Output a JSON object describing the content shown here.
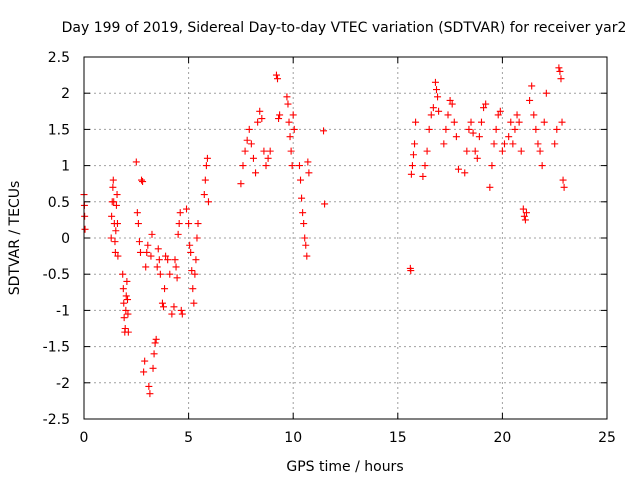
{
  "chart_data": {
    "type": "scatter",
    "title": "Day 199 of 2019, Sidereal Day-to-day VTEC variation (SDTVAR) for receiver yar2",
    "xlabel": "GPS time / hours",
    "ylabel": "SDTVAR / TECUs",
    "xlim": [
      0,
      25
    ],
    "ylim": [
      -2.5,
      2.5
    ],
    "xticks": [
      0,
      5,
      10,
      15,
      20,
      25
    ],
    "yticks": [
      -2.5,
      -2,
      -1.5,
      -1,
      -0.5,
      0,
      0.5,
      1,
      1.5,
      2,
      2.5
    ],
    "xtick_labels": [
      "0",
      "5",
      "10",
      "15",
      "20",
      "25"
    ],
    "ytick_labels": [
      "-2.5",
      "-2",
      "-1.5",
      "-1",
      "-0.5",
      "0",
      "0.5",
      "1",
      "1.5",
      "2",
      "2.5"
    ],
    "grid": true,
    "marker": "+",
    "marker_color": "#ff0000",
    "series": [
      {
        "name": "SDTVAR",
        "points": [
          [
            0.0,
            0.6
          ],
          [
            0.02,
            0.45
          ],
          [
            0.03,
            0.3
          ],
          [
            0.05,
            0.12
          ],
          [
            1.3,
            0.0
          ],
          [
            1.32,
            0.3
          ],
          [
            1.35,
            0.5
          ],
          [
            1.38,
            0.7
          ],
          [
            1.4,
            0.8
          ],
          [
            1.42,
            0.5
          ],
          [
            1.45,
            0.2
          ],
          [
            1.48,
            -0.05
          ],
          [
            1.5,
            -0.2
          ],
          [
            1.52,
            0.1
          ],
          [
            1.55,
            0.45
          ],
          [
            1.58,
            0.6
          ],
          [
            1.6,
            0.2
          ],
          [
            1.62,
            -0.25
          ],
          [
            1.85,
            -0.5
          ],
          [
            1.88,
            -0.7
          ],
          [
            1.9,
            -0.9
          ],
          [
            1.92,
            -1.1
          ],
          [
            1.95,
            -1.3
          ],
          [
            1.97,
            -1.25
          ],
          [
            2.0,
            -1.0
          ],
          [
            2.02,
            -0.8
          ],
          [
            2.05,
            -0.6
          ],
          [
            2.08,
            -0.85
          ],
          [
            2.1,
            -1.05
          ],
          [
            2.12,
            -1.3
          ],
          [
            2.5,
            1.05
          ],
          [
            2.55,
            0.35
          ],
          [
            2.6,
            0.2
          ],
          [
            2.65,
            -0.05
          ],
          [
            2.7,
            -0.2
          ],
          [
            2.75,
            0.8
          ],
          [
            2.8,
            0.78
          ],
          [
            2.85,
            -1.85
          ],
          [
            2.9,
            -1.7
          ],
          [
            2.95,
            -0.4
          ],
          [
            3.0,
            -0.2
          ],
          [
            3.05,
            -0.1
          ],
          [
            3.1,
            -2.05
          ],
          [
            3.15,
            -2.15
          ],
          [
            3.2,
            -0.25
          ],
          [
            3.25,
            0.05
          ],
          [
            3.3,
            -1.8
          ],
          [
            3.35,
            -1.6
          ],
          [
            3.4,
            -1.45
          ],
          [
            3.45,
            -1.4
          ],
          [
            3.5,
            -0.4
          ],
          [
            3.55,
            -0.15
          ],
          [
            3.6,
            -0.3
          ],
          [
            3.65,
            -0.5
          ],
          [
            3.75,
            -0.9
          ],
          [
            3.8,
            -0.95
          ],
          [
            3.85,
            -0.7
          ],
          [
            3.9,
            -0.25
          ],
          [
            4.0,
            -0.3
          ],
          [
            4.1,
            -0.5
          ],
          [
            4.2,
            -1.05
          ],
          [
            4.3,
            -0.95
          ],
          [
            4.35,
            -0.3
          ],
          [
            4.4,
            -0.4
          ],
          [
            4.45,
            -0.55
          ],
          [
            4.5,
            0.05
          ],
          [
            4.55,
            0.2
          ],
          [
            4.6,
            0.35
          ],
          [
            4.65,
            -1.0
          ],
          [
            4.7,
            -1.05
          ],
          [
            4.9,
            0.4
          ],
          [
            5.0,
            0.2
          ],
          [
            5.05,
            -0.1
          ],
          [
            5.1,
            -0.2
          ],
          [
            5.15,
            -0.45
          ],
          [
            5.2,
            -0.7
          ],
          [
            5.25,
            -0.9
          ],
          [
            5.3,
            -0.5
          ],
          [
            5.35,
            -0.3
          ],
          [
            5.4,
            0.0
          ],
          [
            5.45,
            0.2
          ],
          [
            5.75,
            0.6
          ],
          [
            5.8,
            0.8
          ],
          [
            5.85,
            1.0
          ],
          [
            5.9,
            1.1
          ],
          [
            5.95,
            0.5
          ],
          [
            7.5,
            0.75
          ],
          [
            7.6,
            1.0
          ],
          [
            7.7,
            1.2
          ],
          [
            7.8,
            1.35
          ],
          [
            7.9,
            1.5
          ],
          [
            8.0,
            1.3
          ],
          [
            8.1,
            1.1
          ],
          [
            8.2,
            0.9
          ],
          [
            8.3,
            1.6
          ],
          [
            8.4,
            1.75
          ],
          [
            8.5,
            1.65
          ],
          [
            8.6,
            1.2
          ],
          [
            8.7,
            1.0
          ],
          [
            8.8,
            1.1
          ],
          [
            8.9,
            1.2
          ],
          [
            9.2,
            2.25
          ],
          [
            9.25,
            2.2
          ],
          [
            9.3,
            1.65
          ],
          [
            9.35,
            1.7
          ],
          [
            9.7,
            1.95
          ],
          [
            9.75,
            1.85
          ],
          [
            9.8,
            1.6
          ],
          [
            9.85,
            1.4
          ],
          [
            9.9,
            1.2
          ],
          [
            9.95,
            1.0
          ],
          [
            10.0,
            1.7
          ],
          [
            10.05,
            1.5
          ],
          [
            10.3,
            1.0
          ],
          [
            10.35,
            0.8
          ],
          [
            10.4,
            0.55
          ],
          [
            10.45,
            0.35
          ],
          [
            10.5,
            0.2
          ],
          [
            10.55,
            0.0
          ],
          [
            10.6,
            -0.1
          ],
          [
            10.65,
            -0.25
          ],
          [
            10.7,
            1.05
          ],
          [
            10.75,
            0.9
          ],
          [
            11.45,
            1.48
          ],
          [
            11.5,
            0.47
          ],
          [
            15.6,
            -0.42
          ],
          [
            15.62,
            -0.45
          ],
          [
            15.65,
            0.88
          ],
          [
            15.7,
            1.0
          ],
          [
            15.75,
            1.15
          ],
          [
            15.8,
            1.3
          ],
          [
            15.85,
            1.6
          ],
          [
            16.2,
            0.85
          ],
          [
            16.3,
            1.0
          ],
          [
            16.4,
            1.2
          ],
          [
            16.5,
            1.5
          ],
          [
            16.6,
            1.7
          ],
          [
            16.7,
            1.8
          ],
          [
            16.8,
            2.15
          ],
          [
            16.85,
            2.05
          ],
          [
            16.9,
            1.95
          ],
          [
            16.95,
            1.75
          ],
          [
            17.2,
            1.3
          ],
          [
            17.3,
            1.5
          ],
          [
            17.4,
            1.7
          ],
          [
            17.5,
            1.9
          ],
          [
            17.6,
            1.85
          ],
          [
            17.7,
            1.6
          ],
          [
            17.8,
            1.4
          ],
          [
            17.9,
            0.95
          ],
          [
            18.2,
            0.9
          ],
          [
            18.3,
            1.2
          ],
          [
            18.4,
            1.5
          ],
          [
            18.5,
            1.6
          ],
          [
            18.6,
            1.45
          ],
          [
            18.7,
            1.2
          ],
          [
            18.8,
            1.1
          ],
          [
            18.9,
            1.4
          ],
          [
            19.0,
            1.6
          ],
          [
            19.1,
            1.8
          ],
          [
            19.2,
            1.85
          ],
          [
            19.4,
            0.7
          ],
          [
            19.5,
            1.0
          ],
          [
            19.6,
            1.3
          ],
          [
            19.7,
            1.5
          ],
          [
            19.8,
            1.7
          ],
          [
            19.9,
            1.75
          ],
          [
            20.0,
            1.2
          ],
          [
            20.1,
            1.3
          ],
          [
            20.3,
            1.4
          ],
          [
            20.4,
            1.6
          ],
          [
            20.5,
            1.3
          ],
          [
            20.6,
            1.5
          ],
          [
            20.7,
            1.7
          ],
          [
            20.8,
            1.6
          ],
          [
            20.9,
            1.2
          ],
          [
            21.0,
            0.4
          ],
          [
            21.05,
            0.3
          ],
          [
            21.1,
            0.25
          ],
          [
            21.15,
            0.35
          ],
          [
            21.3,
            1.9
          ],
          [
            21.4,
            2.1
          ],
          [
            21.5,
            1.7
          ],
          [
            21.6,
            1.5
          ],
          [
            21.7,
            1.3
          ],
          [
            21.8,
            1.2
          ],
          [
            21.9,
            1.0
          ],
          [
            22.0,
            1.6
          ],
          [
            22.1,
            2.0
          ],
          [
            22.5,
            1.3
          ],
          [
            22.6,
            1.5
          ],
          [
            22.7,
            2.35
          ],
          [
            22.75,
            2.3
          ],
          [
            22.8,
            2.2
          ],
          [
            22.85,
            1.6
          ],
          [
            22.9,
            0.8
          ],
          [
            22.95,
            0.7
          ]
        ]
      }
    ]
  }
}
